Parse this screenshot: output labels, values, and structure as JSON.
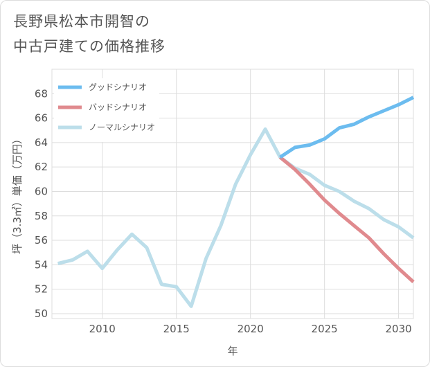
{
  "title": {
    "line1": "長野県松本市開智の",
    "line2": "中古戸建ての価格推移"
  },
  "chart_data": {
    "type": "line",
    "xlabel": "年",
    "ylabel": "坪（3.3㎡）単価（万円）",
    "xlim": [
      2006.6,
      2031
    ],
    "ylim": [
      49.6,
      70
    ],
    "x_ticks": [
      2010,
      2015,
      2020,
      2025,
      2030
    ],
    "y_ticks": [
      50,
      52,
      54,
      56,
      58,
      60,
      62,
      64,
      66,
      68
    ],
    "grid": true,
    "legend_position": "top-left",
    "series": [
      {
        "name": "グッドシナリオ",
        "color": "#6cbcef",
        "x": [
          2022,
          2023,
          2024,
          2025,
          2026,
          2027,
          2028,
          2029,
          2030,
          2031
        ],
        "values": [
          62.8,
          63.6,
          63.8,
          64.3,
          65.2,
          65.5,
          66.1,
          66.6,
          67.1,
          67.7
        ]
      },
      {
        "name": "バッドシナリオ",
        "color": "#e08a8e",
        "x": [
          2022,
          2023,
          2024,
          2025,
          2026,
          2027,
          2028,
          2029,
          2030,
          2031
        ],
        "values": [
          62.8,
          61.8,
          60.6,
          59.3,
          58.2,
          57.2,
          56.2,
          54.9,
          53.7,
          52.6
        ]
      },
      {
        "name": "ノーマルシナリオ",
        "color": "#bcdeea",
        "x": [
          2007,
          2008,
          2009,
          2010,
          2011,
          2012,
          2013,
          2014,
          2015,
          2016,
          2017,
          2018,
          2019,
          2020,
          2021,
          2022,
          2023,
          2024,
          2025,
          2026,
          2027,
          2028,
          2029,
          2030,
          2031
        ],
        "values": [
          54.1,
          54.4,
          55.1,
          53.7,
          55.2,
          56.5,
          55.4,
          52.4,
          52.2,
          50.6,
          54.5,
          57.2,
          60.6,
          63.0,
          65.1,
          62.8,
          61.9,
          61.4,
          60.5,
          60.0,
          59.2,
          58.6,
          57.7,
          57.1,
          56.2
        ]
      }
    ]
  }
}
